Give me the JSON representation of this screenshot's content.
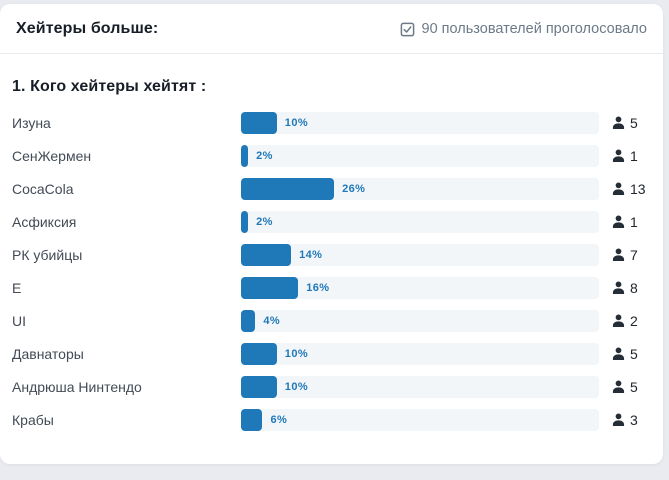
{
  "poll": {
    "title": "Хейтеры больше:",
    "voters_label": "90 пользователей проголосовало",
    "question": "1. Кого хейтеры хейтят :",
    "rows": [
      {
        "label": "Изуна",
        "percent": 10,
        "percent_label": "10%",
        "count": "5"
      },
      {
        "label": "СенЖермен",
        "percent": 2,
        "percent_label": "2%",
        "count": "1"
      },
      {
        "label": "CocaCola",
        "percent": 26,
        "percent_label": "26%",
        "count": "13"
      },
      {
        "label": "Асфиксия",
        "percent": 2,
        "percent_label": "2%",
        "count": "1"
      },
      {
        "label": "РК убийцы",
        "percent": 14,
        "percent_label": "14%",
        "count": "7"
      },
      {
        "label": "Е",
        "percent": 16,
        "percent_label": "16%",
        "count": "8"
      },
      {
        "label": "UI",
        "percent": 4,
        "percent_label": "4%",
        "count": "2"
      },
      {
        "label": "Давнаторы",
        "percent": 10,
        "percent_label": "10%",
        "count": "5"
      },
      {
        "label": "Андрюша Нинтендо",
        "percent": 10,
        "percent_label": "10%",
        "count": "5"
      },
      {
        "label": "Крабы",
        "percent": 6,
        "percent_label": "6%",
        "count": "3"
      }
    ],
    "icons": {
      "voters_icon": "check-square-icon",
      "count_icon": "person-icon"
    },
    "colors": {
      "accent": "#1f78b8",
      "bar_track": "#f2f6f9",
      "page_background": "#e9ebf0",
      "card_background": "#ffffff",
      "title_text": "#171e28",
      "muted_text": "#6c7a88",
      "option_text": "#434b55"
    }
  },
  "chart_data": {
    "type": "bar",
    "orientation": "horizontal",
    "title": "1. Кого хейтеры хейтят :",
    "categories": [
      "Изуна",
      "СенЖермен",
      "CocaCola",
      "Асфиксия",
      "РК убийцы",
      "Е",
      "UI",
      "Давнаторы",
      "Андрюша Нинтендо",
      "Крабы"
    ],
    "values": [
      10,
      2,
      26,
      2,
      14,
      16,
      4,
      10,
      10,
      6
    ],
    "counts": [
      5,
      1,
      13,
      1,
      7,
      8,
      2,
      5,
      5,
      3
    ],
    "value_unit": "%",
    "xlim": [
      0,
      100
    ],
    "legend": null,
    "grid": false
  }
}
